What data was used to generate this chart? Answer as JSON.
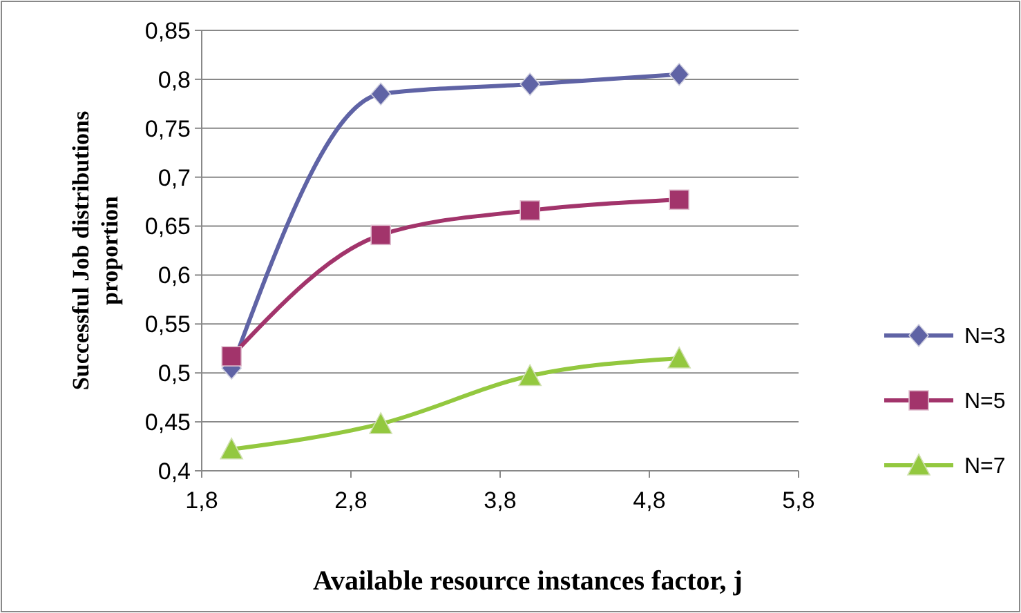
{
  "chart_data": {
    "type": "line",
    "xlabel": "Available resource instances factor, j",
    "ylabel": "Successful Job distributions proportion",
    "xlim": [
      1.8,
      5.8
    ],
    "xticks": [
      {
        "value": 1.8,
        "label": "1,8"
      },
      {
        "value": 2.8,
        "label": "2,8"
      },
      {
        "value": 3.8,
        "label": "3,8"
      },
      {
        "value": 4.8,
        "label": "4,8"
      },
      {
        "value": 5.8,
        "label": "5,8"
      }
    ],
    "ylim": [
      0.4,
      0.85
    ],
    "yticks": [
      {
        "value": 0.4,
        "label": "0,4"
      },
      {
        "value": 0.45,
        "label": "0,45"
      },
      {
        "value": 0.5,
        "label": "0,5"
      },
      {
        "value": 0.55,
        "label": "0,55"
      },
      {
        "value": 0.6,
        "label": "0,6"
      },
      {
        "value": 0.65,
        "label": "0,65"
      },
      {
        "value": 0.7,
        "label": "0,7"
      },
      {
        "value": 0.75,
        "label": "0,75"
      },
      {
        "value": 0.8,
        "label": "0,8"
      },
      {
        "value": 0.85,
        "label": "0,85"
      }
    ],
    "grid": "y",
    "legend": "right",
    "line_style": "solid",
    "series": [
      {
        "name": "N=3",
        "color": "#5f63a5",
        "marker": "diamond",
        "x": [
          2,
          3,
          4,
          5
        ],
        "values": [
          0.505,
          0.785,
          0.795,
          0.805
        ]
      },
      {
        "name": "N=5",
        "color": "#a2346b",
        "marker": "square",
        "x": [
          2,
          3,
          4,
          5
        ],
        "values": [
          0.517,
          0.641,
          0.666,
          0.677
        ]
      },
      {
        "name": "N=7",
        "color": "#93c83f",
        "marker": "triangle",
        "x": [
          2,
          3,
          4,
          5
        ],
        "values": [
          0.422,
          0.448,
          0.497,
          0.515
        ]
      }
    ]
  }
}
